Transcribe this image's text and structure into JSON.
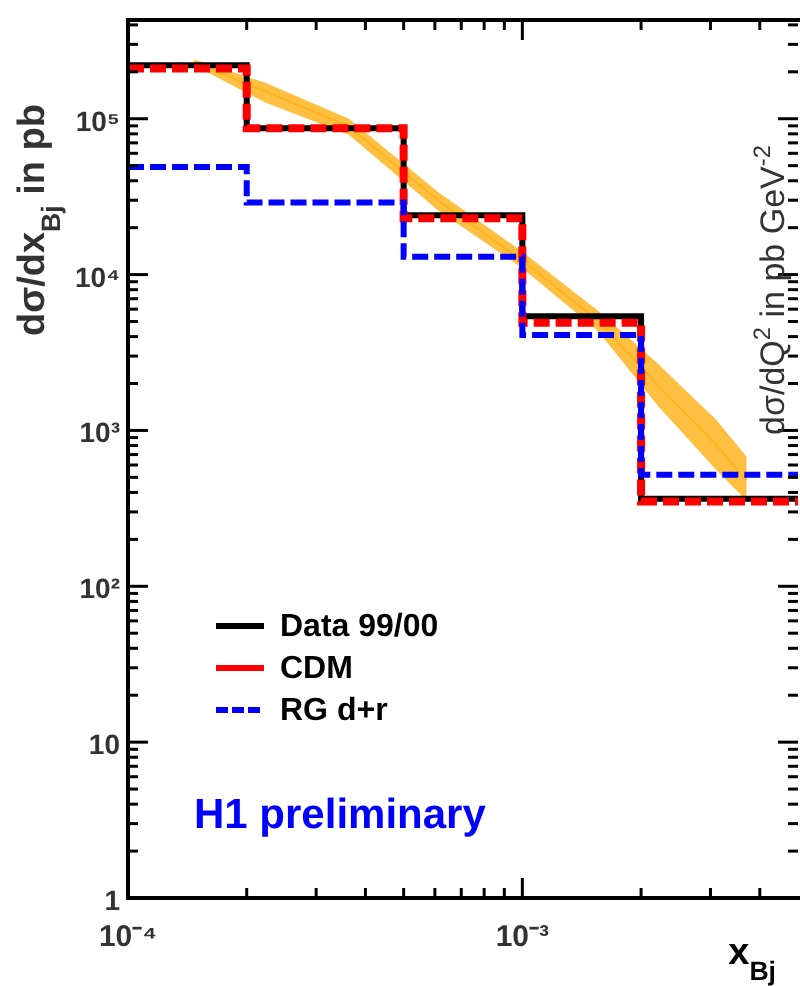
{
  "chart_data": {
    "type": "histogram",
    "xlabel": "x$_{Bj}$",
    "ylabel": "dσ/dx$_{Bj}$ in pb",
    "y2label": "dσ/dQ$^{2}$ in pb GeV$^{-2}$",
    "log": "xy",
    "legend": "bottom left",
    "annotations": [
      "H1 preliminary"
    ],
    "bins": [
      0.0001,
      0.0002,
      0.0005,
      0.001,
      0.002,
      0.005
    ],
    "xlim": [
      0.0001,
      0.005
    ],
    "ylim": [
      1,
      430000
    ],
    "xticks": [
      {
        "value": 0.0001,
        "label": "10⁻⁴"
      },
      {
        "value": 0.0002,
        "label": null
      },
      {
        "value": 0.0003,
        "label": null
      },
      {
        "value": 0.0004,
        "label": null
      },
      {
        "value": 0.0005,
        "label": null
      },
      {
        "value": 0.0006,
        "label": null
      },
      {
        "value": 0.0007,
        "label": null
      },
      {
        "value": 0.0008,
        "label": null
      },
      {
        "value": 0.0009,
        "label": null
      },
      {
        "value": 0.001,
        "label": "10⁻³"
      },
      {
        "value": 0.002,
        "label": null
      },
      {
        "value": 0.003,
        "label": null
      },
      {
        "value": 0.004,
        "label": null
      }
    ],
    "yticks": [
      1,
      {
        "value": 2,
        "label": null
      },
      {
        "value": 3,
        "label": null
      },
      {
        "value": 4,
        "label": null
      },
      {
        "value": 5,
        "label": null
      },
      {
        "value": 6,
        "label": null
      },
      {
        "value": 7,
        "label": null
      },
      {
        "value": 8,
        "label": null
      },
      {
        "value": 9,
        "label": null
      },
      10,
      {
        "value": 20,
        "label": null
      },
      {
        "value": 30,
        "label": null
      },
      {
        "value": 40,
        "label": null
      },
      {
        "value": 50,
        "label": null
      },
      {
        "value": 60,
        "label": null
      },
      {
        "value": 70,
        "label": null
      },
      {
        "value": 80,
        "label": null
      },
      {
        "value": 90,
        "label": null
      },
      {
        "value": 100,
        "label": "10²"
      },
      {
        "value": 200,
        "label": null
      },
      {
        "value": 300,
        "label": null
      },
      {
        "value": 400,
        "label": null
      },
      {
        "value": 500,
        "label": null
      },
      {
        "value": 600,
        "label": null
      },
      {
        "value": 700,
        "label": null
      },
      {
        "value": 800,
        "label": null
      },
      {
        "value": 900,
        "label": null
      },
      {
        "value": 1000,
        "label": "10³"
      },
      {
        "value": 2000,
        "label": null
      },
      {
        "value": 3000,
        "label": null
      },
      {
        "value": 4000,
        "label": null
      },
      {
        "value": 5000,
        "label": null
      },
      {
        "value": 6000,
        "label": null
      },
      {
        "value": 7000,
        "label": null
      },
      {
        "value": 8000,
        "label": null
      },
      {
        "value": 9000,
        "label": null
      },
      {
        "value": 10000,
        "label": "10⁴"
      },
      {
        "value": 20000,
        "label": null
      },
      {
        "value": 30000,
        "label": null
      },
      {
        "value": 40000,
        "label": null
      },
      {
        "value": 50000,
        "label": null
      },
      {
        "value": 60000,
        "label": null
      },
      {
        "value": 70000,
        "label": null
      },
      {
        "value": 80000,
        "label": null
      },
      {
        "value": 90000,
        "label": null
      },
      {
        "value": 100000,
        "label": "10⁵"
      },
      {
        "value": 200000,
        "label": null
      },
      {
        "value": 300000,
        "label": null
      },
      {
        "value": 400000,
        "label": null
      }
    ],
    "series": [
      {
        "type": "line",
        "color": "#ffb41e",
        "x": [
          0.000147,
          0.000223,
          0.000363,
          0.00061,
          0.001,
          0.00155,
          0.0022,
          0.0031,
          0.0037
        ],
        "values": [
          230000,
          150000,
          89000,
          30000,
          12300,
          5100,
          1960,
          810,
          480
        ],
        "lower": [
          220000,
          127000,
          79000,
          26000,
          11000,
          4400,
          1450,
          560,
          355
        ],
        "upper": [
          240000,
          170000,
          100000,
          34000,
          14000,
          5900,
          2700,
          1170,
          680
        ]
      },
      {
        "name": "Data 99/00",
        "color": "#000000",
        "values": [
          220000,
          87000,
          24000,
          5400,
          365
        ],
        "line_style": "solid"
      },
      {
        "name": "CDM",
        "color": "#ff0000",
        "values": [
          210000,
          87000,
          23000,
          4900,
          350
        ],
        "line_style": "dashed"
      },
      {
        "name": "RG d+r",
        "color": "#0000ff",
        "values": [
          49000,
          29000,
          13000,
          4100,
          520
        ],
        "line_style": "dashed"
      }
    ]
  }
}
